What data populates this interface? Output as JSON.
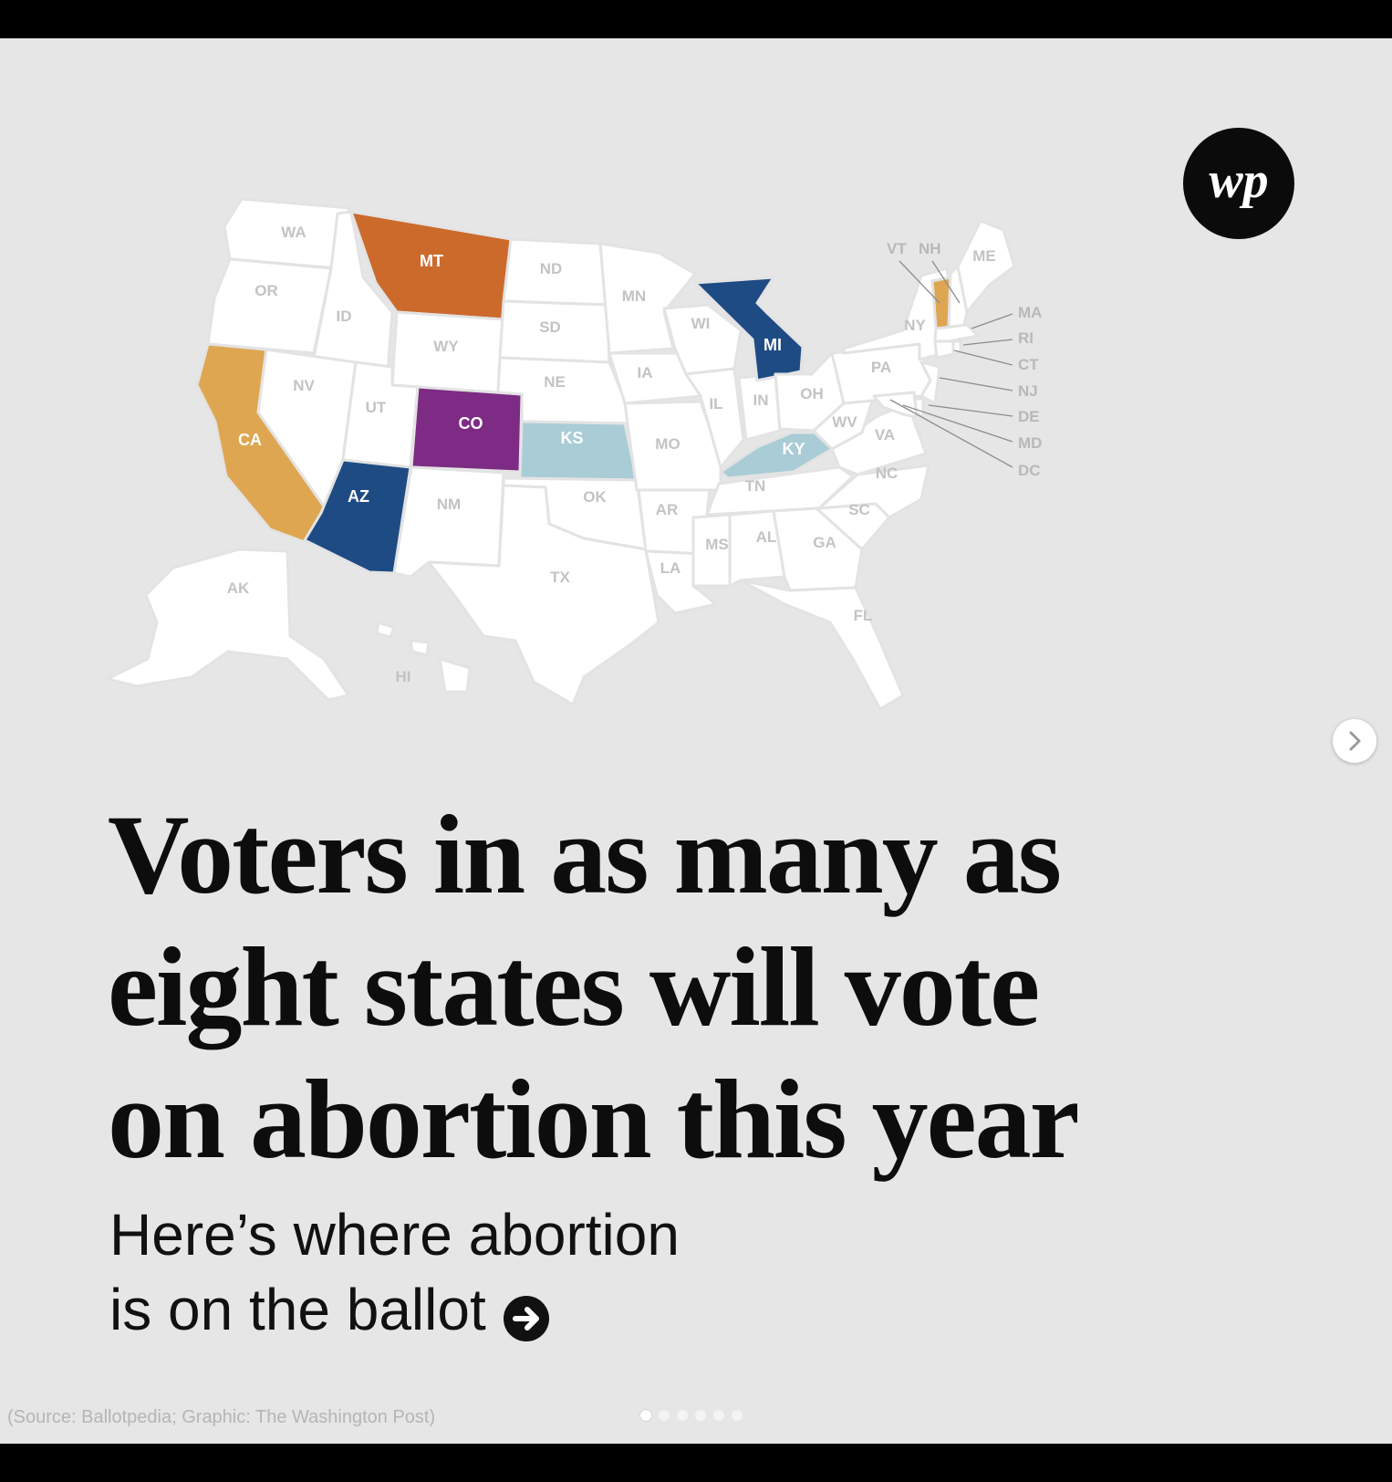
{
  "header": {
    "logo_text": "wp"
  },
  "map": {
    "highlight_colors": {
      "orange": "#cc6a2c",
      "gold": "#dfa652",
      "navy": "#1f4b84",
      "purple": "#7d2b85",
      "lightblue": "#a9ccd6"
    },
    "highlighted_states": [
      {
        "abbr": "MT",
        "color": "orange"
      },
      {
        "abbr": "CA",
        "color": "gold"
      },
      {
        "abbr": "VT",
        "color": "gold"
      },
      {
        "abbr": "AZ",
        "color": "navy"
      },
      {
        "abbr": "MI",
        "color": "navy"
      },
      {
        "abbr": "CO",
        "color": "purple"
      },
      {
        "abbr": "KS",
        "color": "lightblue"
      },
      {
        "abbr": "KY",
        "color": "lightblue"
      }
    ],
    "state_labels": [
      "WA",
      "OR",
      "CA",
      "MT",
      "ID",
      "NV",
      "WY",
      "UT",
      "AZ",
      "CO",
      "NM",
      "ND",
      "SD",
      "NE",
      "KS",
      "OK",
      "TX",
      "MN",
      "IA",
      "MO",
      "AR",
      "LA",
      "WI",
      "MI",
      "IL",
      "IN",
      "OH",
      "KY",
      "TN",
      "MS",
      "AL",
      "GA",
      "FL",
      "SC",
      "NC",
      "VA",
      "WV",
      "PA",
      "NY",
      "ME",
      "AK",
      "HI"
    ],
    "northeast_labels": [
      "VT",
      "NH",
      "MA",
      "RI",
      "CT",
      "NJ",
      "DE",
      "MD",
      "DC"
    ]
  },
  "headline": {
    "line1": "Voters in as many as",
    "line2": "eight states will vote",
    "line3": "on abortion this year"
  },
  "subhead": {
    "line1": "Here’s where abortion",
    "line2": "is on the ballot"
  },
  "footer": {
    "source": "(Source: Ballotpedia; Graphic: The Washington Post)",
    "pagination": {
      "count": 6,
      "active_index": 0
    }
  }
}
